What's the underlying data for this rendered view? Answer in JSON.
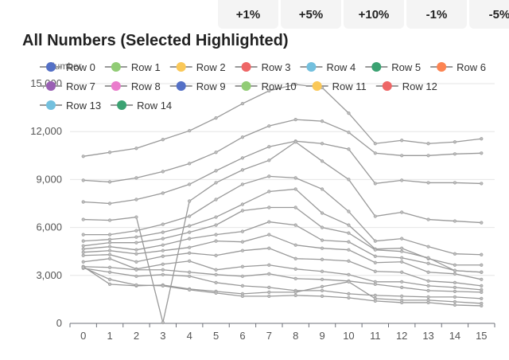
{
  "pct_buttons": [
    "+1%",
    "+5%",
    "+10%",
    "-1%",
    "-5%"
  ],
  "chart_data": {
    "type": "line",
    "title": "All Numbers (Selected Highlighted)",
    "ylabel": "Number",
    "xlabel": "",
    "x": [
      0,
      1,
      2,
      3,
      4,
      5,
      6,
      7,
      8,
      9,
      10,
      11,
      12,
      13,
      14,
      15
    ],
    "ylim": [
      0,
      15000
    ],
    "yticks": [
      0,
      3000,
      6000,
      9000,
      12000,
      15000
    ],
    "ytick_labels": [
      "0",
      "3,000",
      "6,000",
      "9,000",
      "12,000",
      "15,000"
    ],
    "grid": true,
    "legend_position": "top",
    "line_color": "#999999",
    "series": [
      {
        "name": "Row 0",
        "color": "#5470c6",
        "values": [
          10450,
          10700,
          10950,
          11500,
          12050,
          12850,
          13750,
          14550,
          14950,
          14750,
          13150,
          11250,
          11450,
          11250,
          11350,
          11550
        ]
      },
      {
        "name": "Row 1",
        "color": "#91cc75",
        "values": [
          8950,
          8850,
          9100,
          9500,
          10000,
          10700,
          11650,
          12350,
          12750,
          12650,
          11950,
          10650,
          10500,
          10500,
          10600,
          10650
        ]
      },
      {
        "name": "Row 2",
        "color": "#fac858",
        "values": [
          7600,
          7500,
          7750,
          8150,
          8700,
          9550,
          10350,
          11050,
          11400,
          11250,
          10900,
          8750,
          8950,
          8800,
          8800,
          8750
        ]
      },
      {
        "name": "Row 3",
        "color": "#ee6666",
        "values": [
          6500,
          6450,
          6650,
          50,
          7650,
          8800,
          9600,
          10200,
          11350,
          10150,
          9000,
          6700,
          6950,
          6500,
          6400,
          6300
        ]
      },
      {
        "name": "Row 4",
        "color": "#73c0de",
        "values": [
          5550,
          5550,
          5800,
          6200,
          6700,
          7750,
          8700,
          9200,
          9100,
          8400,
          7000,
          5150,
          5300,
          4800,
          4350,
          4300
        ]
      },
      {
        "name": "Row 5",
        "color": "#3ba272",
        "values": [
          5150,
          5250,
          5400,
          5700,
          6100,
          6650,
          7450,
          8250,
          8400,
          6900,
          6150,
          4650,
          4700,
          4050,
          3650,
          3650
        ]
      },
      {
        "name": "Row 6",
        "color": "#fc8452",
        "values": [
          4850,
          5050,
          5050,
          5300,
          5700,
          6150,
          7050,
          7250,
          7250,
          6000,
          5650,
          4600,
          4500,
          4100,
          3300,
          3200
        ]
      },
      {
        "name": "Row 7",
        "color": "#9a60b4",
        "values": [
          4650,
          4800,
          4600,
          4900,
          5300,
          5550,
          5750,
          6350,
          6150,
          5200,
          5100,
          4200,
          4100,
          3750,
          3300,
          3200
        ]
      },
      {
        "name": "Row 8",
        "color": "#ea7ccc",
        "values": [
          4450,
          4550,
          4350,
          4550,
          4750,
          5150,
          5100,
          5550,
          4900,
          4700,
          4600,
          3800,
          3850,
          3200,
          3100,
          2750
        ]
      },
      {
        "name": "Row 9",
        "color": "#5470c6",
        "values": [
          4250,
          4300,
          3850,
          4200,
          4400,
          4250,
          4550,
          4700,
          4050,
          4000,
          3900,
          3250,
          3200,
          2650,
          2550,
          2350
        ]
      },
      {
        "name": "Row 10",
        "color": "#91cc75",
        "values": [
          3850,
          4050,
          3400,
          3700,
          3900,
          3350,
          3550,
          3650,
          3400,
          3250,
          3050,
          2600,
          2600,
          2350,
          2250,
          2100
        ]
      },
      {
        "name": "Row 11",
        "color": "#fac858",
        "values": [
          3550,
          3500,
          3350,
          3350,
          3200,
          3050,
          2950,
          3100,
          2800,
          2750,
          2650,
          2450,
          2250,
          2050,
          2000,
          1950
        ]
      },
      {
        "name": "Row 12",
        "color": "#ee6666",
        "values": [
          3450,
          3200,
          2950,
          3050,
          2950,
          2550,
          2350,
          2250,
          2050,
          2050,
          1850,
          1750,
          1700,
          1650,
          1650,
          1550
        ]
      },
      {
        "name": "Row 13",
        "color": "#73c0de",
        "values": [
          3550,
          2450,
          2350,
          2400,
          2150,
          2000,
          1850,
          1950,
          1950,
          2300,
          2600,
          1550,
          1450,
          1450,
          1350,
          1250
        ]
      },
      {
        "name": "Row 14",
        "color": "#3ba272",
        "values": [
          3500,
          2750,
          2400,
          2350,
          2100,
          1900,
          1700,
          1700,
          1750,
          1700,
          1600,
          1400,
          1300,
          1300,
          1150,
          1100
        ]
      }
    ]
  }
}
